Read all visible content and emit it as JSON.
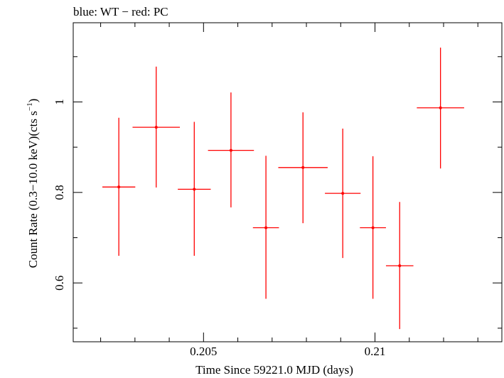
{
  "chart_data": {
    "type": "scatter",
    "title": "blue: WT − red: PC",
    "xlabel": "Time Since 59221.0 MJD (days)",
    "ylabel_main": "Count Rate (0.3−10.0 keV)(cts s",
    "ylabel_sup": "−1",
    "ylabel_close": ")",
    "xlim": [
      0.2012,
      0.2137
    ],
    "ylim": [
      0.47,
      1.175
    ],
    "xticks": [
      {
        "v": 0.205,
        "label": "0.205"
      },
      {
        "v": 0.21,
        "label": "0.21"
      }
    ],
    "xminor": [
      0.202,
      0.203,
      0.204,
      0.206,
      0.207,
      0.208,
      0.209,
      0.211,
      0.212,
      0.213
    ],
    "yticks": [
      {
        "v": 0.6,
        "label": "0.6"
      },
      {
        "v": 0.8,
        "label": "0.8"
      },
      {
        "v": 1.0,
        "label": "1"
      }
    ],
    "yminor": [
      0.5,
      0.7,
      0.9,
      1.1
    ],
    "series": [
      {
        "color": "#ff0000",
        "points": [
          {
            "x": 0.20253,
            "xerr": 0.00048,
            "y": 0.812,
            "ylo": 0.66,
            "yhi": 0.965
          },
          {
            "x": 0.20362,
            "xerr": 0.00069,
            "y": 0.944,
            "ylo": 0.811,
            "yhi": 1.078
          },
          {
            "x": 0.20473,
            "xerr": 0.00048,
            "y": 0.807,
            "ylo": 0.66,
            "yhi": 0.956
          },
          {
            "x": 0.2058,
            "xerr": 0.00067,
            "y": 0.893,
            "ylo": 0.767,
            "yhi": 1.021
          },
          {
            "x": 0.20682,
            "xerr": 0.00038,
            "y": 0.722,
            "ylo": 0.565,
            "yhi": 0.881
          },
          {
            "x": 0.2079,
            "xerr": 0.00072,
            "y": 0.855,
            "ylo": 0.732,
            "yhi": 0.977
          },
          {
            "x": 0.20906,
            "xerr": 0.00052,
            "y": 0.798,
            "ylo": 0.655,
            "yhi": 0.941
          },
          {
            "x": 0.20994,
            "xerr": 0.00038,
            "y": 0.722,
            "ylo": 0.565,
            "yhi": 0.88
          },
          {
            "x": 0.21072,
            "xerr": 0.0004,
            "y": 0.638,
            "ylo": 0.498,
            "yhi": 0.779
          },
          {
            "x": 0.21191,
            "xerr": 0.00069,
            "y": 0.987,
            "ylo": 0.853,
            "yhi": 1.12
          }
        ]
      }
    ]
  }
}
